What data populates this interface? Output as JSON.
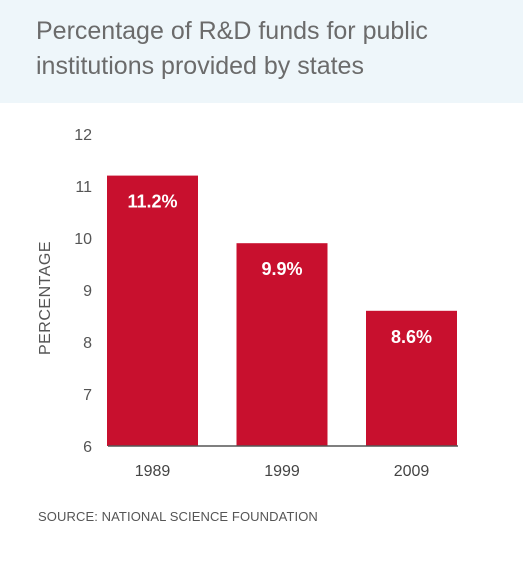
{
  "header": {
    "title": "Percentage of R&D funds for public institutions provided by states"
  },
  "chart_data": {
    "type": "bar",
    "title": "Percentage of R&D funds for public institutions provided by states",
    "categories": [
      "1989",
      "1999",
      "2009"
    ],
    "values": [
      11.2,
      9.9,
      8.6
    ],
    "data_labels": [
      "11.2%",
      "9.9%",
      "8.6%"
    ],
    "xlabel": "",
    "ylabel": "PERCENTAGE",
    "ylim": [
      6,
      12
    ],
    "yticks": [
      6,
      7,
      8,
      9,
      10,
      11,
      12
    ],
    "grid": false,
    "bar_color": "#c8102e"
  },
  "footer": {
    "source": "SOURCE: NATIONAL SCIENCE FOUNDATION"
  }
}
